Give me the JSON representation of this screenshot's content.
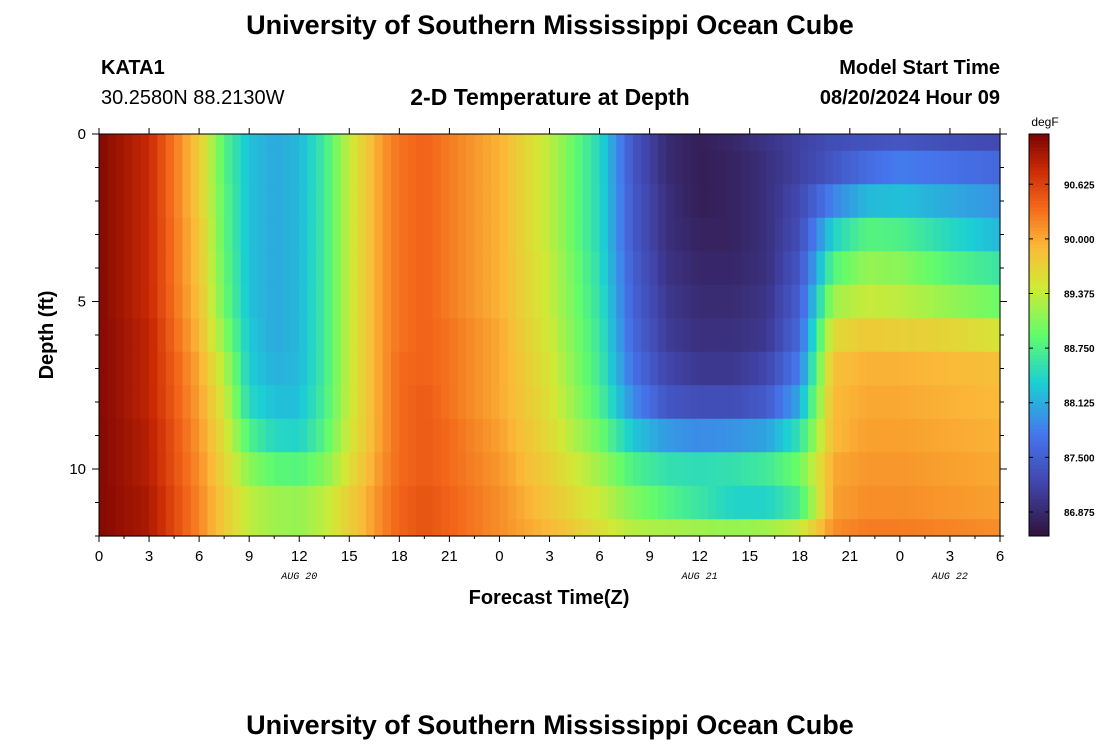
{
  "page": {
    "title": "University of Southern Mississippi Ocean Cube",
    "station_id": "KATA1",
    "coords": "30.2580N  88.2130W",
    "subtitle": "2-D Temperature at Depth",
    "model_start_label": "Model Start Time",
    "model_start_value": "08/20/2024 Hour 09",
    "footer_title": "University of Southern Mississippi Ocean Cube"
  },
  "chart_data": {
    "type": "heatmap",
    "title": "2-D Temperature at Depth",
    "xlabel": "Forecast Time(Z)",
    "ylabel": "Depth (ft)",
    "x_range_hours": [
      0,
      54
    ],
    "x_tick_labels": [
      "0",
      "3",
      "6",
      "9",
      "12",
      "15",
      "18",
      "21",
      "0",
      "3",
      "6",
      "9",
      "12",
      "15",
      "18",
      "21",
      "0",
      "3",
      "6"
    ],
    "x_day_labels": [
      {
        "label": "AUG 20",
        "hour": 12
      },
      {
        "label": "AUG 21",
        "hour": 36
      },
      {
        "label": "AUG 22",
        "hour": 51
      }
    ],
    "y_range_ft": [
      0,
      12
    ],
    "y_tick_labels": [
      "0",
      "5",
      "10"
    ],
    "y_tick_values": [
      0,
      5,
      10
    ],
    "colorbar": {
      "unit": "degF",
      "range": [
        86.6,
        91.2
      ],
      "tick_values": [
        86.875,
        87.5,
        88.125,
        88.75,
        89.375,
        90.0,
        90.625
      ],
      "tick_labels": [
        "86.875",
        "87.500",
        "88.125",
        "88.750",
        "89.375",
        "90.000",
        "90.625"
      ]
    },
    "colormap_stops": [
      {
        "t": 0.0,
        "color": "#30123b"
      },
      {
        "t": 0.13,
        "color": "#4145ab"
      },
      {
        "t": 0.25,
        "color": "#4675ed"
      },
      {
        "t": 0.38,
        "color": "#1bcfd4"
      },
      {
        "t": 0.5,
        "color": "#62fc6b"
      },
      {
        "t": 0.62,
        "color": "#d2e935"
      },
      {
        "t": 0.72,
        "color": "#fbb938"
      },
      {
        "t": 0.82,
        "color": "#f3661a"
      },
      {
        "t": 0.91,
        "color": "#cb2a04"
      },
      {
        "t": 1.0,
        "color": "#7a0403"
      }
    ],
    "depth_layers_ft": [
      0,
      1,
      2,
      3,
      4,
      5,
      6,
      7,
      8,
      9,
      10,
      11,
      12
    ],
    "time_knots_hours": [
      0,
      3,
      6,
      7.5,
      9,
      10.5,
      12,
      13.5,
      15,
      17,
      18,
      19.5,
      21,
      24,
      27,
      30,
      32,
      34,
      36,
      38,
      40,
      42,
      44,
      46,
      48,
      51,
      54
    ],
    "temperature_degF": [
      [
        91.15,
        90.8,
        89.75,
        88.8,
        88.25,
        88.1,
        88.2,
        88.65,
        89.4,
        90.1,
        90.3,
        90.4,
        90.25,
        89.95,
        89.35,
        88.45,
        87.4,
        86.9,
        86.75,
        86.85,
        87.0,
        87.15,
        87.3,
        87.35,
        87.4,
        87.3,
        87.25
      ],
      [
        91.15,
        90.8,
        89.75,
        88.8,
        88.25,
        88.1,
        88.2,
        88.65,
        89.4,
        90.1,
        90.3,
        90.4,
        90.25,
        89.95,
        89.35,
        88.45,
        87.4,
        86.9,
        86.75,
        86.8,
        86.95,
        87.15,
        87.4,
        87.65,
        87.8,
        87.7,
        87.6
      ],
      [
        91.15,
        90.8,
        89.75,
        88.85,
        88.25,
        88.1,
        88.2,
        88.65,
        89.4,
        90.1,
        90.3,
        90.4,
        90.25,
        89.95,
        89.35,
        88.45,
        87.45,
        86.95,
        86.75,
        86.8,
        86.95,
        87.25,
        87.85,
        88.2,
        88.25,
        88.1,
        87.95
      ],
      [
        91.15,
        90.8,
        89.8,
        88.85,
        88.25,
        88.1,
        88.2,
        88.65,
        89.4,
        90.1,
        90.3,
        90.4,
        90.25,
        89.95,
        89.35,
        88.45,
        87.45,
        86.95,
        86.8,
        86.8,
        86.95,
        87.3,
        88.4,
        88.8,
        88.75,
        88.45,
        88.2
      ],
      [
        91.15,
        90.8,
        89.8,
        88.9,
        88.25,
        88.1,
        88.2,
        88.65,
        89.4,
        90.1,
        90.3,
        90.4,
        90.25,
        89.95,
        89.4,
        88.5,
        87.5,
        87.0,
        86.85,
        86.85,
        86.95,
        87.4,
        88.8,
        89.15,
        89.1,
        88.8,
        88.6
      ],
      [
        91.15,
        90.8,
        89.85,
        88.95,
        88.25,
        88.1,
        88.2,
        88.65,
        89.4,
        90.1,
        90.3,
        90.4,
        90.25,
        89.95,
        89.4,
        88.55,
        87.55,
        87.05,
        86.9,
        86.9,
        87.0,
        87.5,
        89.2,
        89.4,
        89.35,
        89.15,
        88.95
      ],
      [
        91.15,
        90.85,
        89.9,
        89.1,
        88.3,
        88.1,
        88.2,
        88.65,
        89.4,
        90.1,
        90.3,
        90.4,
        90.3,
        90.0,
        89.45,
        88.6,
        87.6,
        87.1,
        86.95,
        86.95,
        87.05,
        87.6,
        89.6,
        89.75,
        89.7,
        89.65,
        89.5
      ],
      [
        91.15,
        90.85,
        90.0,
        89.3,
        88.35,
        88.15,
        88.2,
        88.65,
        89.4,
        90.1,
        90.35,
        90.4,
        90.3,
        90.0,
        89.5,
        88.65,
        87.7,
        87.2,
        87.05,
        87.05,
        87.2,
        87.8,
        89.85,
        89.95,
        89.95,
        89.9,
        89.85
      ],
      [
        91.15,
        90.85,
        90.05,
        89.45,
        88.45,
        88.25,
        88.25,
        88.7,
        89.4,
        90.1,
        90.35,
        90.45,
        90.3,
        90.0,
        89.55,
        88.75,
        87.9,
        87.4,
        87.3,
        87.3,
        87.45,
        88.1,
        89.9,
        90.0,
        90.0,
        89.95,
        89.9
      ],
      [
        91.15,
        90.9,
        90.1,
        89.55,
        88.75,
        88.45,
        88.4,
        88.8,
        89.45,
        90.1,
        90.35,
        90.45,
        90.35,
        90.05,
        89.6,
        88.95,
        88.3,
        88.0,
        87.9,
        87.95,
        88.05,
        88.55,
        89.9,
        90.05,
        90.05,
        90.0,
        89.95
      ],
      [
        91.15,
        90.9,
        90.15,
        89.65,
        89.1,
        88.85,
        88.8,
        89.05,
        89.55,
        90.15,
        90.35,
        90.45,
        90.35,
        90.1,
        89.7,
        89.2,
        88.75,
        88.55,
        88.5,
        88.55,
        88.65,
        88.95,
        90.0,
        90.1,
        90.1,
        90.05,
        90.0
      ],
      [
        91.15,
        90.95,
        90.2,
        89.75,
        89.35,
        89.2,
        89.15,
        89.35,
        89.7,
        90.2,
        90.4,
        90.5,
        90.4,
        90.15,
        89.8,
        89.4,
        89.05,
        88.8,
        88.6,
        88.4,
        88.4,
        88.7,
        90.05,
        90.15,
        90.15,
        90.1,
        90.05
      ],
      [
        91.15,
        90.95,
        90.2,
        89.75,
        89.35,
        89.2,
        89.15,
        89.35,
        89.7,
        90.2,
        90.4,
        90.5,
        90.4,
        90.15,
        89.9,
        89.55,
        89.3,
        89.25,
        89.2,
        89.15,
        89.2,
        89.4,
        90.15,
        90.25,
        90.25,
        90.2,
        90.15
      ]
    ]
  }
}
